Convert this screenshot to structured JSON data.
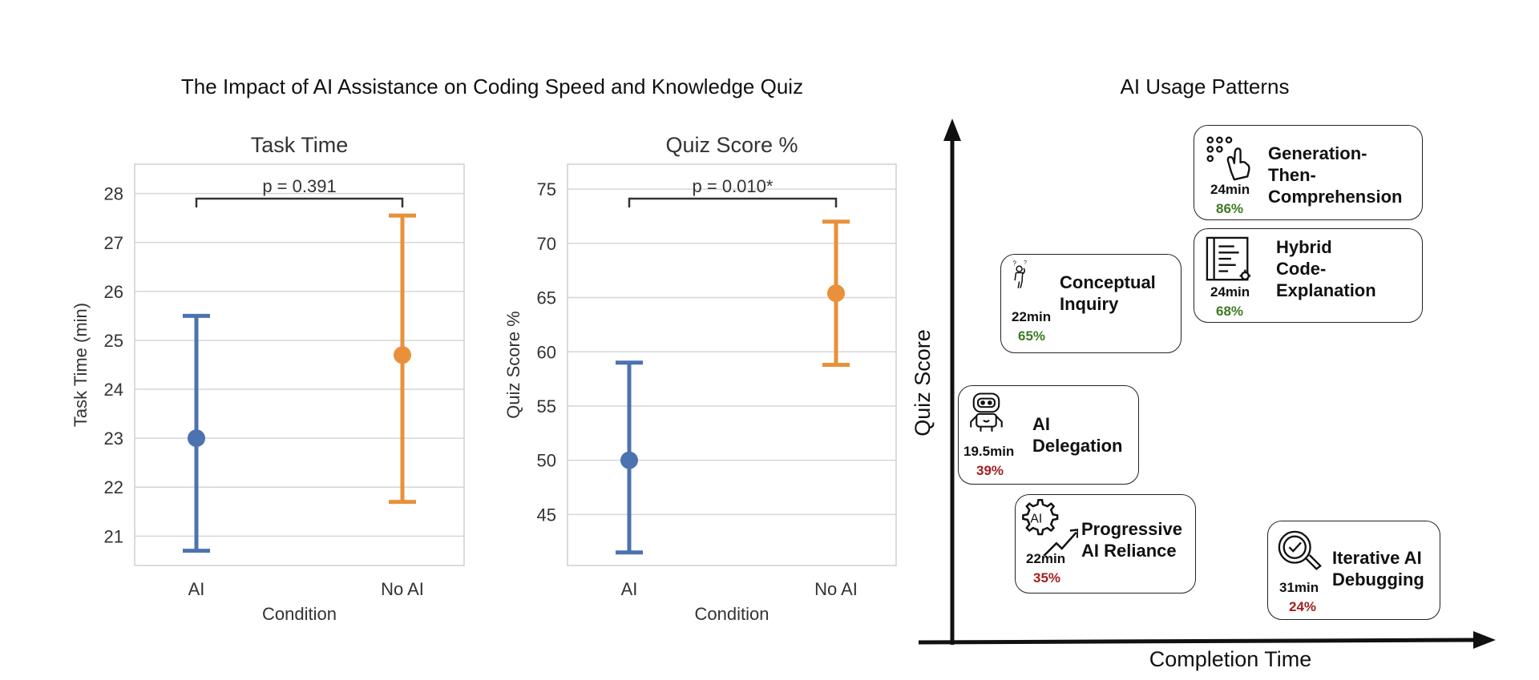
{
  "figure_title": "The Impact of AI Assistance on Coding Speed and Knowledge Quiz",
  "panel_title": "AI Usage Patterns",
  "colors": {
    "ai": "#4c72b0",
    "no_ai": "#e8913a",
    "good": "#3d7a22",
    "bad": "#a02020"
  },
  "chart_data": [
    {
      "type": "scatter",
      "title": "Task Time",
      "xlabel": "Condition",
      "ylabel": "Task Time (min)",
      "categories": [
        "AI",
        "No AI"
      ],
      "ylim": [
        20.4,
        28.6
      ],
      "yticks": [
        21,
        22,
        23,
        24,
        25,
        26,
        27,
        28
      ],
      "grid": true,
      "series": [
        {
          "category": "AI",
          "mean": 23.0,
          "low": 20.7,
          "high": 25.5
        },
        {
          "category": "No AI",
          "mean": 24.7,
          "low": 21.7,
          "high": 27.55
        }
      ],
      "annotation": "p = 0.391"
    },
    {
      "type": "scatter",
      "title": "Quiz Score %",
      "xlabel": "Condition",
      "ylabel": "Quiz Score %",
      "categories": [
        "AI",
        "No AI"
      ],
      "ylim": [
        40.3,
        77.3
      ],
      "yticks": [
        45,
        50,
        55,
        60,
        65,
        70,
        75
      ],
      "grid": true,
      "series": [
        {
          "category": "AI",
          "mean": 50.0,
          "low": 41.5,
          "high": 59.0
        },
        {
          "category": "No AI",
          "mean": 65.4,
          "low": 58.8,
          "high": 72.0
        }
      ],
      "annotation": "p = 0.010*"
    },
    {
      "type": "diagram",
      "title": "AI Usage Patterns",
      "xlabel": "Completion Time",
      "ylabel": "Quiz Score",
      "patterns": [
        {
          "name_lines": [
            "Generation-",
            "Then-",
            "Comprehension"
          ],
          "time": "24min",
          "score": "86%",
          "score_level": "good",
          "icon": "hand-tap-icon"
        },
        {
          "name_lines": [
            "Hybrid",
            "Code-",
            "Explanation"
          ],
          "time": "24min",
          "score": "68%",
          "score_level": "good",
          "icon": "code-document-icon"
        },
        {
          "name_lines": [
            "Conceptual",
            "Inquiry"
          ],
          "time": "22min",
          "score": "65%",
          "score_level": "good",
          "icon": "thinking-person-icon"
        },
        {
          "name_lines": [
            "AI",
            "Delegation"
          ],
          "time": "19.5min",
          "score": "39%",
          "score_level": "bad",
          "icon": "robot-icon"
        },
        {
          "name_lines": [
            "Progressive",
            "AI Reliance"
          ],
          "time": "22min",
          "score": "35%",
          "score_level": "bad",
          "icon": "ai-gear-trend-icon"
        },
        {
          "name_lines": [
            "Iterative AI",
            "Debugging"
          ],
          "time": "31min",
          "score": "24%",
          "score_level": "bad",
          "icon": "magnifier-check-icon"
        }
      ]
    }
  ]
}
